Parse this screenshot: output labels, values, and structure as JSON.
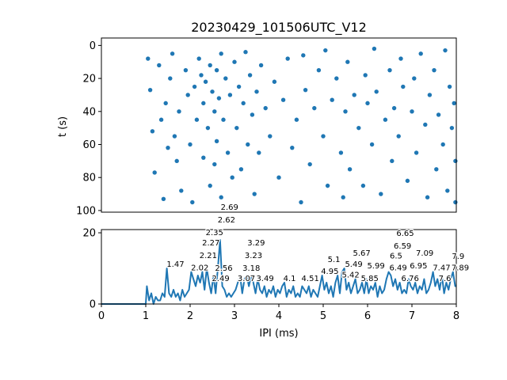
{
  "chart_data": [
    {
      "type": "scatter",
      "title": "20230429_101506UTC_V12",
      "xlabel": "",
      "ylabel": "t (s)",
      "xlim": [
        0,
        8
      ],
      "ylim": [
        101,
        -4.5
      ],
      "y_inverted": true,
      "yticks": [
        "0",
        "20",
        "40",
        "60",
        "80",
        "100"
      ],
      "color": "#1f77b4",
      "points": [
        [
          1.05,
          8
        ],
        [
          1.1,
          27
        ],
        [
          1.15,
          52
        ],
        [
          1.2,
          77
        ],
        [
          1.3,
          12
        ],
        [
          1.35,
          45
        ],
        [
          1.4,
          93
        ],
        [
          1.45,
          35
        ],
        [
          1.5,
          62
        ],
        [
          1.55,
          20
        ],
        [
          1.6,
          5
        ],
        [
          1.65,
          55
        ],
        [
          1.7,
          70
        ],
        [
          1.75,
          40
        ],
        [
          1.8,
          88
        ],
        [
          1.9,
          15
        ],
        [
          1.95,
          30
        ],
        [
          2.0,
          60
        ],
        [
          2.05,
          95
        ],
        [
          2.1,
          25
        ],
        [
          2.15,
          45
        ],
        [
          2.2,
          8
        ],
        [
          2.25,
          18
        ],
        [
          2.3,
          35
        ],
        [
          2.3,
          68
        ],
        [
          2.35,
          22
        ],
        [
          2.4,
          50
        ],
        [
          2.45,
          12
        ],
        [
          2.45,
          85
        ],
        [
          2.5,
          28
        ],
        [
          2.55,
          40
        ],
        [
          2.55,
          72
        ],
        [
          2.6,
          15
        ],
        [
          2.6,
          58
        ],
        [
          2.65,
          32
        ],
        [
          2.7,
          5
        ],
        [
          2.7,
          92
        ],
        [
          2.75,
          45
        ],
        [
          2.8,
          20
        ],
        [
          2.85,
          65
        ],
        [
          2.9,
          30
        ],
        [
          2.95,
          80
        ],
        [
          3.0,
          10
        ],
        [
          3.05,
          50
        ],
        [
          3.1,
          25
        ],
        [
          3.15,
          75
        ],
        [
          3.2,
          35
        ],
        [
          3.25,
          4
        ],
        [
          3.3,
          60
        ],
        [
          3.35,
          18
        ],
        [
          3.4,
          42
        ],
        [
          3.45,
          90
        ],
        [
          3.5,
          28
        ],
        [
          3.55,
          65
        ],
        [
          3.6,
          12
        ],
        [
          3.7,
          38
        ],
        [
          3.8,
          55
        ],
        [
          3.9,
          22
        ],
        [
          4.0,
          80
        ],
        [
          4.1,
          33
        ],
        [
          4.2,
          8
        ],
        [
          4.3,
          62
        ],
        [
          4.4,
          45
        ],
        [
          4.5,
          95
        ],
        [
          4.55,
          6
        ],
        [
          4.6,
          27
        ],
        [
          4.7,
          72
        ],
        [
          4.8,
          38
        ],
        [
          4.9,
          15
        ],
        [
          5.0,
          55
        ],
        [
          5.05,
          3
        ],
        [
          5.1,
          85
        ],
        [
          5.2,
          33
        ],
        [
          5.3,
          20
        ],
        [
          5.4,
          65
        ],
        [
          5.45,
          92
        ],
        [
          5.5,
          40
        ],
        [
          5.55,
          10
        ],
        [
          5.6,
          75
        ],
        [
          5.7,
          30
        ],
        [
          5.8,
          50
        ],
        [
          5.9,
          85
        ],
        [
          5.95,
          18
        ],
        [
          6.0,
          35
        ],
        [
          6.1,
          60
        ],
        [
          6.15,
          2
        ],
        [
          6.2,
          28
        ],
        [
          6.3,
          90
        ],
        [
          6.4,
          45
        ],
        [
          6.5,
          15
        ],
        [
          6.55,
          70
        ],
        [
          6.6,
          38
        ],
        [
          6.7,
          55
        ],
        [
          6.75,
          8
        ],
        [
          6.8,
          25
        ],
        [
          6.9,
          82
        ],
        [
          7.0,
          40
        ],
        [
          7.05,
          20
        ],
        [
          7.1,
          65
        ],
        [
          7.2,
          5
        ],
        [
          7.3,
          48
        ],
        [
          7.35,
          92
        ],
        [
          7.4,
          30
        ],
        [
          7.5,
          15
        ],
        [
          7.55,
          75
        ],
        [
          7.6,
          42
        ],
        [
          7.7,
          60
        ],
        [
          7.75,
          3
        ],
        [
          7.8,
          88
        ],
        [
          7.85,
          25
        ],
        [
          7.9,
          50
        ],
        [
          7.95,
          35
        ],
        [
          7.98,
          70
        ],
        [
          7.98,
          95
        ]
      ]
    },
    {
      "type": "line",
      "xlabel": "IPI (ms)",
      "ylabel": "",
      "xlim": [
        0,
        8
      ],
      "ylim": [
        0,
        20.9
      ],
      "color": "#1f77b4",
      "xticks": [
        "0",
        "1",
        "2",
        "3",
        "4",
        "5",
        "6",
        "7",
        "8"
      ],
      "yticks": [
        "0",
        "20"
      ],
      "bin_start": 1.0,
      "bin_width": 0.05,
      "values": [
        5,
        1,
        3,
        0,
        2,
        1,
        1,
        3,
        2,
        10,
        3,
        2,
        4,
        2,
        3,
        1,
        4,
        2,
        3,
        4,
        9,
        7,
        5,
        8,
        6,
        9,
        4,
        10,
        6,
        3,
        8,
        3,
        10,
        18,
        5,
        4,
        2,
        3,
        2,
        3,
        4,
        6,
        8,
        3,
        7,
        8,
        5,
        8,
        6,
        3,
        7,
        4,
        3,
        5,
        2,
        4,
        3,
        5,
        2,
        4,
        3,
        5,
        6,
        2,
        4,
        3,
        5,
        2,
        3,
        2,
        5,
        4,
        3,
        5,
        2,
        4,
        3,
        2,
        5,
        8,
        4,
        6,
        3,
        5,
        2,
        6,
        8,
        3,
        9,
        10,
        4,
        6,
        3,
        5,
        7,
        3,
        4,
        6,
        3,
        7,
        3,
        5,
        4,
        6,
        2,
        5,
        3,
        4,
        7,
        9,
        8,
        5,
        7,
        4,
        6,
        3,
        4,
        3,
        7,
        5,
        4,
        6,
        3,
        5,
        4,
        7,
        3,
        4,
        6,
        9,
        5,
        7,
        4,
        8,
        3,
        6,
        4,
        7,
        9,
        5
      ],
      "annotations": [
        {
          "x": 1.47,
          "y": 10,
          "label": "1.47"
        },
        {
          "x": 2.02,
          "y": 9,
          "label": "2.02"
        },
        {
          "x": 2.21,
          "y": 8,
          "label": "2.21"
        },
        {
          "x": 2.27,
          "y": 8,
          "label": "2.27"
        },
        {
          "x": 2.35,
          "y": 10,
          "label": "2.35"
        },
        {
          "x": 2.49,
          "y": 6,
          "label": "2.49"
        },
        {
          "x": 2.56,
          "y": 8,
          "label": "2.56"
        },
        {
          "x": 2.62,
          "y": 10,
          "label": "2.62"
        },
        {
          "x": 2.69,
          "y": 18,
          "label": "2.69"
        },
        {
          "x": 3.07,
          "y": 6,
          "label": "3.07"
        },
        {
          "x": 3.18,
          "y": 8,
          "label": "3.18"
        },
        {
          "x": 3.23,
          "y": 8,
          "label": "3.23"
        },
        {
          "x": 3.29,
          "y": 8,
          "label": "3.29"
        },
        {
          "x": 3.49,
          "y": 6,
          "label": "3.49"
        },
        {
          "x": 4.1,
          "y": 6,
          "label": "4.1"
        },
        {
          "x": 4.51,
          "y": 6,
          "label": "4.51"
        },
        {
          "x": 4.95,
          "y": 8,
          "label": "4.95"
        },
        {
          "x": 5.1,
          "y": 6,
          "label": "5.1"
        },
        {
          "x": 5.42,
          "y": 7,
          "label": "5.42"
        },
        {
          "x": 5.49,
          "y": 10,
          "label": "5.49"
        },
        {
          "x": 5.67,
          "y": 6,
          "label": "5.67"
        },
        {
          "x": 5.85,
          "y": 6,
          "label": "5.85"
        },
        {
          "x": 5.99,
          "y": 6,
          "label": "5.99"
        },
        {
          "x": 6.5,
          "y": 7,
          "label": "6.5"
        },
        {
          "x": 6.49,
          "y": 9,
          "label": "6.49"
        },
        {
          "x": 6.59,
          "y": 8,
          "label": "6.59"
        },
        {
          "x": 6.65,
          "y": 8,
          "label": "6.65"
        },
        {
          "x": 6.76,
          "y": 6,
          "label": "6.76"
        },
        {
          "x": 6.95,
          "y": 6,
          "label": "6.95"
        },
        {
          "x": 7.09,
          "y": 6,
          "label": "7.09"
        },
        {
          "x": 7.47,
          "y": 9,
          "label": "7.47"
        },
        {
          "x": 7.6,
          "y": 6,
          "label": "7.6"
        },
        {
          "x": 7.89,
          "y": 9,
          "label": "7.89"
        },
        {
          "x": 7.9,
          "y": 6,
          "label": "7.9"
        }
      ]
    }
  ]
}
